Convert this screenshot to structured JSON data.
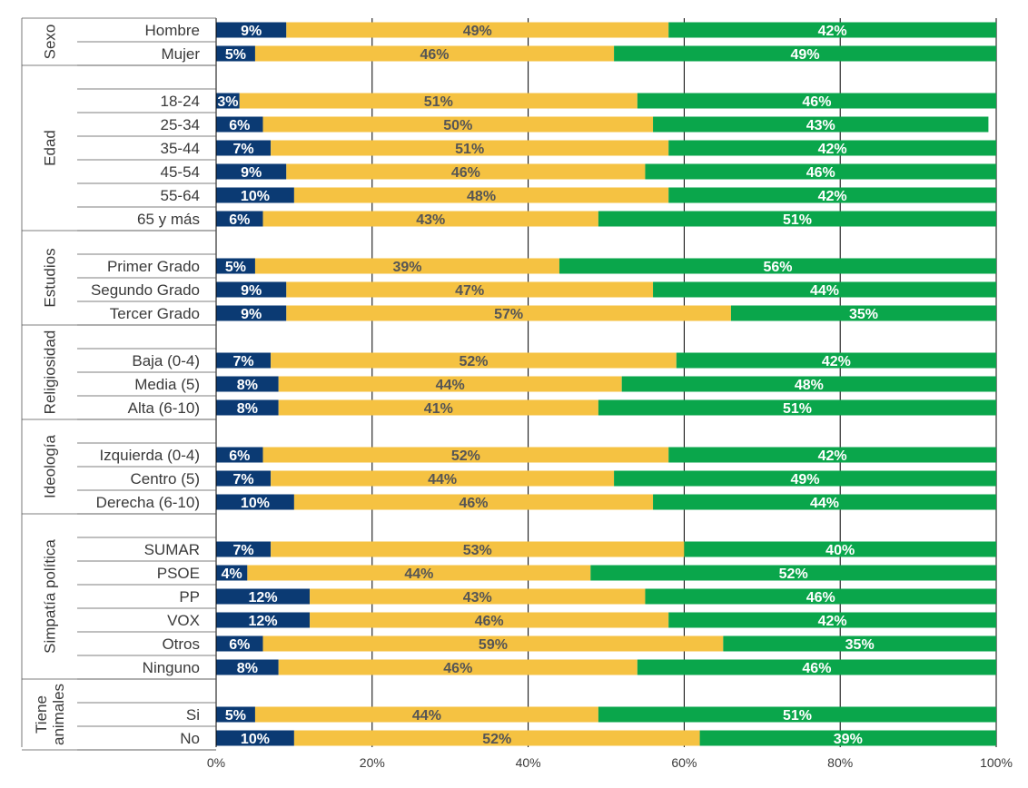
{
  "chart_data": {
    "type": "bar",
    "orientation": "horizontal",
    "stacked": true,
    "xlim": [
      0,
      100
    ],
    "x_ticks": [
      "0%",
      "20%",
      "40%",
      "60%",
      "80%",
      "100%"
    ],
    "grid": "vertical",
    "colors": [
      "#0b3a73",
      "#f5c242",
      "#0aa64b"
    ],
    "label_colors": [
      "#ffffff",
      "#555555",
      "#ffffff"
    ],
    "groups": [
      {
        "name": "Sexo",
        "rows": [
          {
            "label": "Hombre",
            "values": [
              9,
              49,
              42
            ]
          },
          {
            "label": "Mujer",
            "values": [
              5,
              46,
              49
            ]
          }
        ]
      },
      {
        "name": "Edad",
        "rows": [
          {
            "label": "18-24",
            "values": [
              3,
              51,
              46
            ]
          },
          {
            "label": "25-34",
            "values": [
              6,
              50,
              43
            ]
          },
          {
            "label": "35-44",
            "values": [
              7,
              51,
              42
            ]
          },
          {
            "label": "45-54",
            "values": [
              9,
              46,
              46
            ]
          },
          {
            "label": "55-64",
            "values": [
              10,
              48,
              42
            ]
          },
          {
            "label": "65 y más",
            "values": [
              6,
              43,
              51
            ]
          }
        ]
      },
      {
        "name": "Estudios",
        "rows": [
          {
            "label": "Primer Grado",
            "values": [
              5,
              39,
              56
            ]
          },
          {
            "label": "Segundo Grado",
            "values": [
              9,
              47,
              44
            ]
          },
          {
            "label": "Tercer Grado",
            "values": [
              9,
              57,
              35
            ]
          }
        ]
      },
      {
        "name": "Religiosidad",
        "rows": [
          {
            "label": "Baja (0-4)",
            "values": [
              7,
              52,
              42
            ]
          },
          {
            "label": "Media (5)",
            "values": [
              8,
              44,
              48
            ]
          },
          {
            "label": "Alta (6-10)",
            "values": [
              8,
              41,
              51
            ]
          }
        ]
      },
      {
        "name": "Ideología",
        "rows": [
          {
            "label": "Izquierda (0-4)",
            "values": [
              6,
              52,
              42
            ]
          },
          {
            "label": "Centro (5)",
            "values": [
              7,
              44,
              49
            ]
          },
          {
            "label": "Derecha (6-10)",
            "values": [
              10,
              46,
              44
            ]
          }
        ]
      },
      {
        "name": "Simpatía política",
        "rows": [
          {
            "label": "SUMAR",
            "values": [
              7,
              53,
              40
            ]
          },
          {
            "label": "PSOE",
            "values": [
              4,
              44,
              52
            ]
          },
          {
            "label": "PP",
            "values": [
              12,
              43,
              46
            ]
          },
          {
            "label": "VOX",
            "values": [
              12,
              46,
              42
            ]
          },
          {
            "label": "Otros",
            "values": [
              6,
              59,
              35
            ]
          },
          {
            "label": "Ninguno",
            "values": [
              8,
              46,
              46
            ]
          }
        ]
      },
      {
        "name": "Tiene animales",
        "rows": [
          {
            "label": "Si",
            "values": [
              5,
              44,
              51
            ]
          },
          {
            "label": "No",
            "values": [
              10,
              52,
              39
            ]
          }
        ]
      }
    ]
  }
}
